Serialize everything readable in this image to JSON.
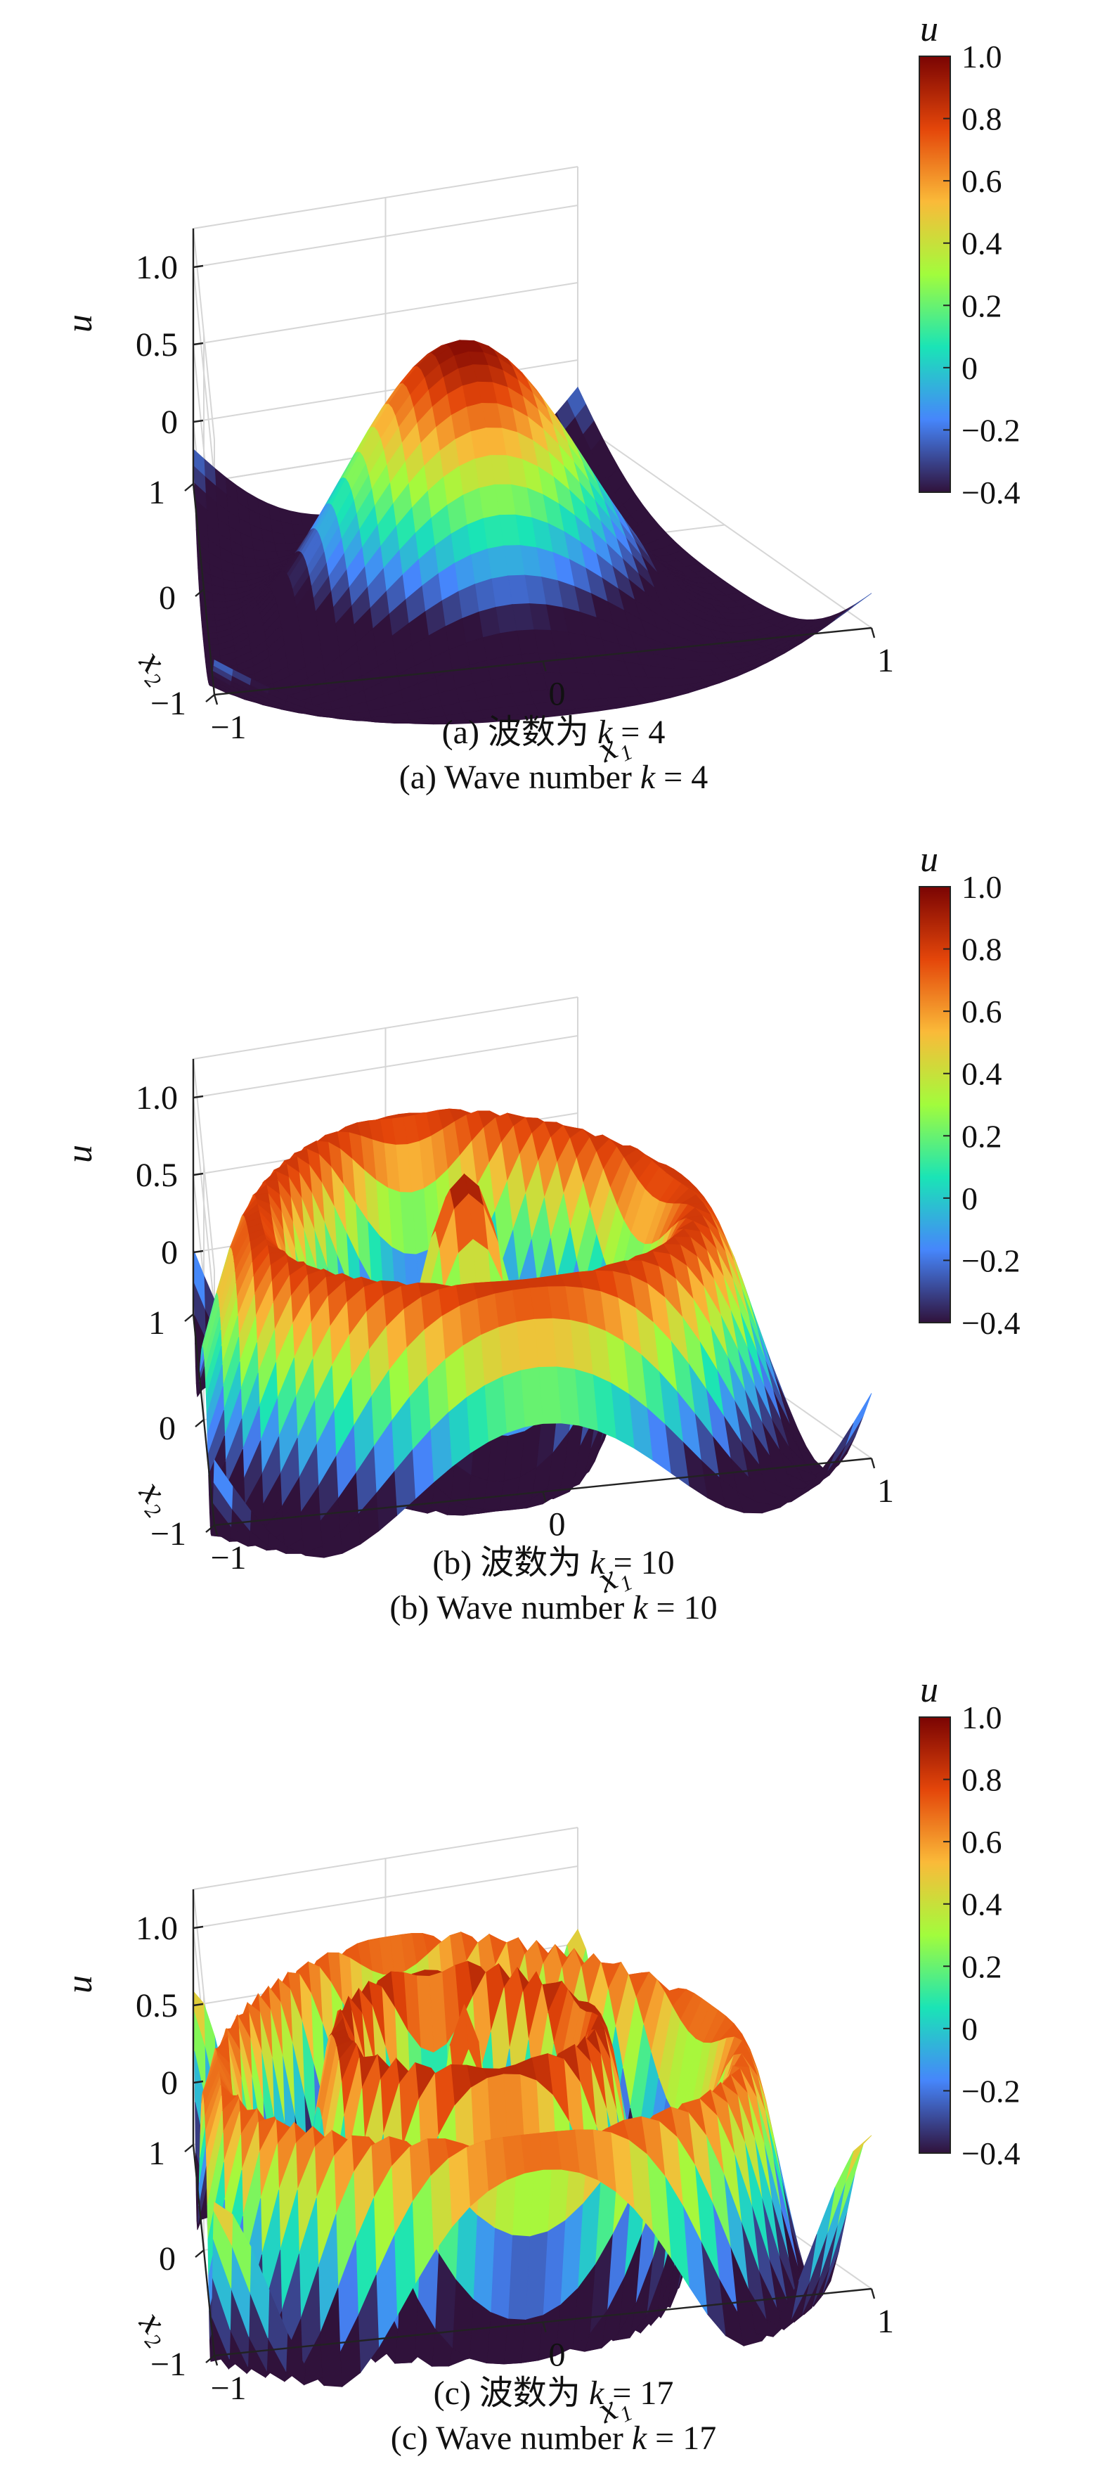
{
  "colormap": [
    "#30123b",
    "#4686fb",
    "#1ae4b6",
    "#a2fc3c",
    "#faba39",
    "#e4460a",
    "#7a0403"
  ],
  "chart_data": [
    {
      "type": "surface",
      "caption_cn_prefix": "(a) 波数为 ",
      "caption_en_prefix": "(a) Wave number ",
      "k_symbol": "k",
      "eq_suffix": " = 4",
      "k": 4,
      "zlabel": "u",
      "xlabel": "x₁",
      "ylabel": "x₂",
      "zticks": [
        "1.0",
        "0.5",
        "0"
      ],
      "zlim": [
        -0.4,
        1.0
      ],
      "xticks": [
        "−1",
        "0",
        "1"
      ],
      "yticks": [
        "1",
        "0",
        "−1"
      ],
      "colorbar": {
        "title": "u",
        "ticks": [
          "1.0",
          "0.8",
          "0.6",
          "0.4",
          "0.2",
          "0",
          "−0.2",
          "−0.4"
        ],
        "range": [
          -0.4,
          1.0
        ]
      }
    },
    {
      "type": "surface",
      "caption_cn_prefix": "(b) 波数为 ",
      "caption_en_prefix": "(b) Wave number ",
      "k_symbol": "k",
      "eq_suffix": " = 10",
      "k": 10,
      "zlabel": "u",
      "xlabel": "x₁",
      "ylabel": "x₂",
      "zticks": [
        "1.0",
        "0.5",
        "0"
      ],
      "zlim": [
        -0.4,
        1.0
      ],
      "xticks": [
        "−1",
        "0",
        "1"
      ],
      "yticks": [
        "1",
        "0",
        "−1"
      ],
      "colorbar": {
        "title": "u",
        "ticks": [
          "1.0",
          "0.8",
          "0.6",
          "0.4",
          "0.2",
          "0",
          "−0.2",
          "−0.4"
        ],
        "range": [
          -0.4,
          1.0
        ]
      }
    },
    {
      "type": "surface",
      "caption_cn_prefix": "(c) 波数为 ",
      "caption_en_prefix": "(c) Wave number ",
      "k_symbol": "k",
      "eq_suffix": " = 17",
      "k": 17,
      "zlabel": "u",
      "xlabel": "x₁",
      "ylabel": "x₂",
      "zticks": [
        "1.0",
        "0.5",
        "0"
      ],
      "zlim": [
        -0.4,
        1.0
      ],
      "xticks": [
        "−1",
        "0",
        "1"
      ],
      "yticks": [
        "1",
        "0",
        "−1"
      ],
      "colorbar": {
        "title": "u",
        "ticks": [
          "1.0",
          "0.8",
          "0.6",
          "0.4",
          "0.2",
          "0",
          "−0.2",
          "−0.4"
        ],
        "range": [
          -0.4,
          1.0
        ]
      }
    }
  ]
}
